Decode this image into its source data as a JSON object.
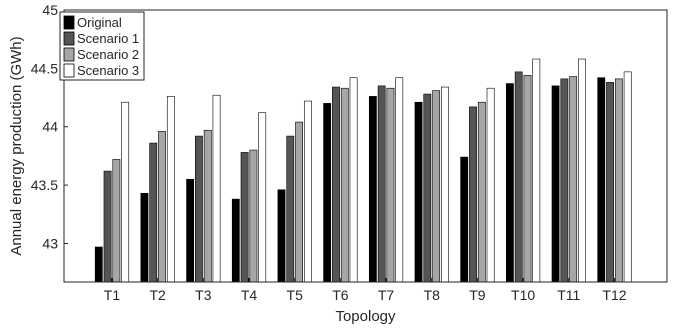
{
  "chart_data": {
    "type": "bar",
    "xlabel": "Topology",
    "ylabel": "Annual energy production (GWh)",
    "categories": [
      "T1",
      "T2",
      "T3",
      "T4",
      "T5",
      "T6",
      "T7",
      "T8",
      "T9",
      "T10",
      "T11",
      "T12"
    ],
    "ylim": [
      42.67,
      45
    ],
    "yticks": [
      43,
      43.5,
      44,
      44.5,
      45
    ],
    "ytick_labels": [
      "43",
      "43.5",
      "44",
      "44.5",
      "45"
    ],
    "grid": false,
    "legend_position": "top-left",
    "series": [
      {
        "name": "Original",
        "color": "#000000",
        "values": [
          42.97,
          43.43,
          43.55,
          43.38,
          43.46,
          44.2,
          44.26,
          44.21,
          43.74,
          44.37,
          44.35,
          44.42
        ]
      },
      {
        "name": "Scenario 1",
        "color": "#555555",
        "values": [
          43.62,
          43.86,
          43.92,
          43.78,
          43.92,
          44.34,
          44.35,
          44.28,
          44.17,
          44.47,
          44.41,
          44.38
        ]
      },
      {
        "name": "Scenario 2",
        "color": "#a6a6a6",
        "values": [
          43.72,
          43.96,
          43.97,
          43.8,
          44.04,
          44.33,
          44.33,
          44.31,
          44.21,
          44.44,
          44.43,
          44.41
        ]
      },
      {
        "name": "Scenario 3",
        "color": "#ffffff",
        "values": [
          44.21,
          44.26,
          44.27,
          44.12,
          44.22,
          44.42,
          44.42,
          44.34,
          44.33,
          44.58,
          44.58,
          44.47
        ]
      }
    ]
  }
}
